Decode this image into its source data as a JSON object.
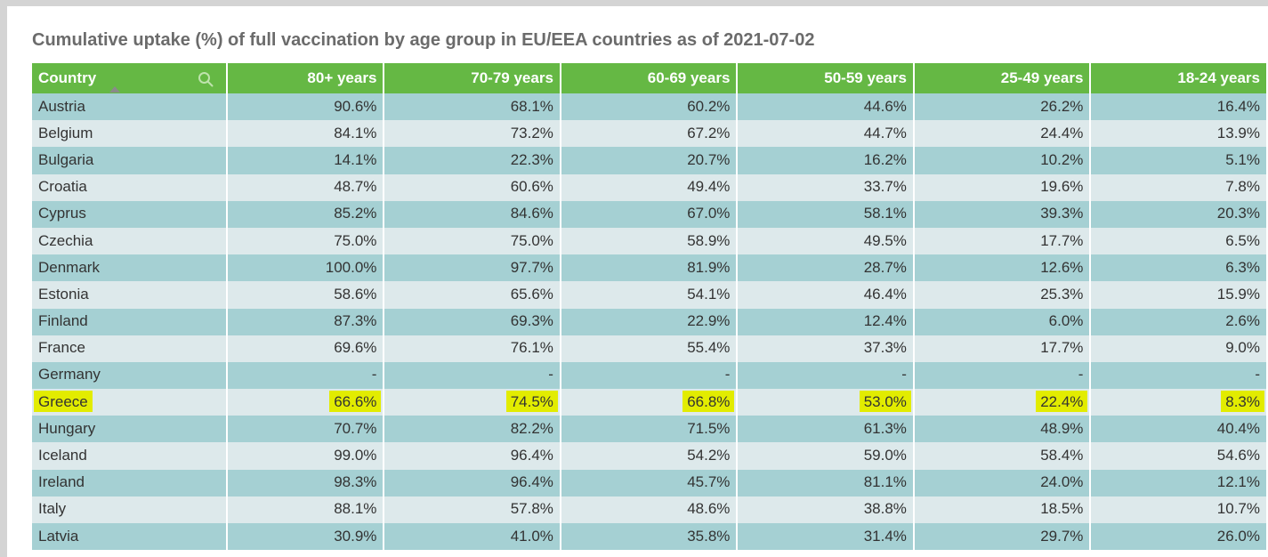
{
  "chart_data": {
    "type": "table",
    "title": "Cumulative uptake (%) of full vaccination by age group in EU/EEA countries as of 2021-07-02",
    "columns": [
      "Country",
      "80+ years",
      "70-79 years",
      "60-69 years",
      "50-59 years",
      "25-49 years",
      "18-24 years"
    ],
    "rows": [
      [
        "Austria",
        "90.6%",
        "68.1%",
        "60.2%",
        "44.6%",
        "26.2%",
        "16.4%"
      ],
      [
        "Belgium",
        "84.1%",
        "73.2%",
        "67.2%",
        "44.7%",
        "24.4%",
        "13.9%"
      ],
      [
        "Bulgaria",
        "14.1%",
        "22.3%",
        "20.7%",
        "16.2%",
        "10.2%",
        "5.1%"
      ],
      [
        "Croatia",
        "48.7%",
        "60.6%",
        "49.4%",
        "33.7%",
        "19.6%",
        "7.8%"
      ],
      [
        "Cyprus",
        "85.2%",
        "84.6%",
        "67.0%",
        "58.1%",
        "39.3%",
        "20.3%"
      ],
      [
        "Czechia",
        "75.0%",
        "75.0%",
        "58.9%",
        "49.5%",
        "17.7%",
        "6.5%"
      ],
      [
        "Denmark",
        "100.0%",
        "97.7%",
        "81.9%",
        "28.7%",
        "12.6%",
        "6.3%"
      ],
      [
        "Estonia",
        "58.6%",
        "65.6%",
        "54.1%",
        "46.4%",
        "25.3%",
        "15.9%"
      ],
      [
        "Finland",
        "87.3%",
        "69.3%",
        "22.9%",
        "12.4%",
        "6.0%",
        "2.6%"
      ],
      [
        "France",
        "69.6%",
        "76.1%",
        "55.4%",
        "37.3%",
        "17.7%",
        "9.0%"
      ],
      [
        "Germany",
        "-",
        "-",
        "-",
        "-",
        "-",
        "-"
      ],
      [
        "Greece",
        "66.6%",
        "74.5%",
        "66.8%",
        "53.0%",
        "22.4%",
        "8.3%"
      ],
      [
        "Hungary",
        "70.7%",
        "82.2%",
        "71.5%",
        "61.3%",
        "48.9%",
        "40.4%"
      ],
      [
        "Iceland",
        "99.0%",
        "96.4%",
        "54.2%",
        "59.0%",
        "58.4%",
        "54.6%"
      ],
      [
        "Ireland",
        "98.3%",
        "96.4%",
        "45.7%",
        "81.1%",
        "24.0%",
        "12.1%"
      ],
      [
        "Italy",
        "88.1%",
        "57.8%",
        "48.6%",
        "38.8%",
        "18.5%",
        "10.7%"
      ],
      [
        "Latvia",
        "30.9%",
        "41.0%",
        "35.8%",
        "31.4%",
        "29.7%",
        "26.0%"
      ]
    ],
    "highlighted_row": "Greece",
    "sorted_by": "Country",
    "colors": {
      "header_bg": "#65b844",
      "row_odd": "#a5d0d3",
      "row_even": "#dde9eb",
      "highlight": "#e2ec00"
    },
    "header_icons": [
      "search-icon",
      "sort-ascending-icon"
    ]
  }
}
